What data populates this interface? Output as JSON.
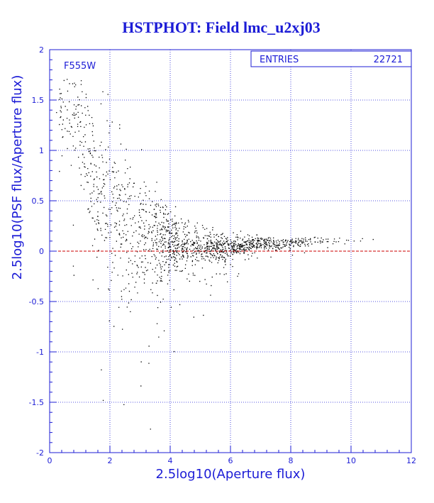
{
  "chart_data": {
    "type": "scatter",
    "title": "HSTPHOT: Field lmc_u2xj03",
    "xlabel": "2.5log10(Aperture flux)",
    "ylabel": "2.5log10(PSF flux/Aperture flux)",
    "xlim": [
      0,
      12
    ],
    "ylim": [
      -2,
      2
    ],
    "x_ticks": [
      "0",
      "2",
      "4",
      "6",
      "8",
      "10",
      "12"
    ],
    "y_ticks": [
      "-2",
      "-1.5",
      "-1",
      "-0.5",
      "0",
      "0.5",
      "1",
      "1.5",
      "2"
    ],
    "grid": true,
    "reference_line": {
      "y": 0,
      "color": "#cc0000"
    },
    "filter_label": "F555W",
    "stats_box": {
      "label": "ENTRIES",
      "value": "22721",
      "position": "top-right"
    },
    "point_color": "#000000",
    "axis_color": "#1c1cd6",
    "series": [
      {
        "values_summary": "22721 stellar sources; core of distribution at y≈0.05–0.15 for x 5–10.5, spread widening toward faint magnitudes (x<4) with tail reaching y≈1.8 at x≈0.5",
        "x": [
          0.5,
          0.8,
          1.0,
          1.2,
          1.5,
          1.8,
          2.0,
          2.2,
          2.5,
          3.0,
          3.5,
          4.0,
          4.5,
          5.0,
          5.5,
          6.0,
          6.5,
          7.0,
          7.5,
          8.0,
          8.5,
          9.0,
          9.5,
          10.0,
          10.5,
          10.9
        ],
        "y_median": [
          1.4,
          1.3,
          1.2,
          1.0,
          0.8,
          0.6,
          0.45,
          0.35,
          0.25,
          0.18,
          0.12,
          0.08,
          0.06,
          0.05,
          0.05,
          0.06,
          0.07,
          0.08,
          0.08,
          0.09,
          0.1,
          0.1,
          0.11,
          0.11,
          0.12,
          0.12
        ],
        "y_spread": [
          0.3,
          0.35,
          0.4,
          0.5,
          0.6,
          0.7,
          0.75,
          0.7,
          0.6,
          0.5,
          0.4,
          0.3,
          0.22,
          0.16,
          0.12,
          0.09,
          0.07,
          0.06,
          0.05,
          0.04,
          0.035,
          0.03,
          0.03,
          0.025,
          0.02,
          0.02
        ]
      }
    ]
  }
}
